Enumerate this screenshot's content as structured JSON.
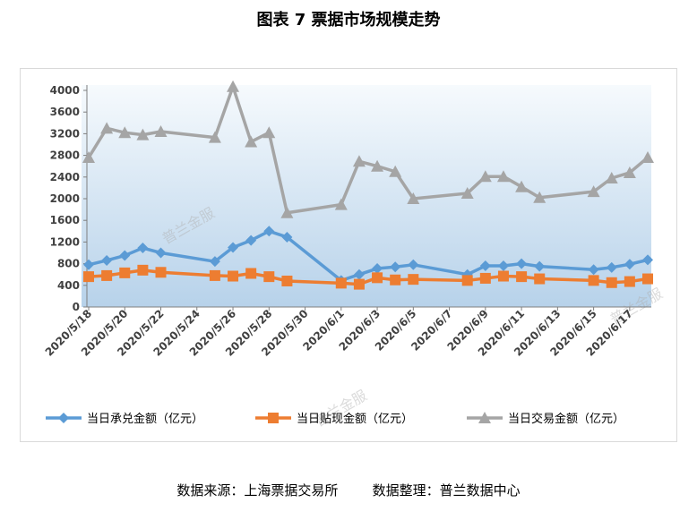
{
  "title": "图表 7  票据市场规模走势",
  "source": "数据来源：上海票据交易所        数据整理：普兰数据中心",
  "watermark": "普兰金服",
  "colors": {
    "accept": "#5b9bd5",
    "discount": "#ed7d31",
    "trade": "#a5a5a5",
    "plot_top": "#f6fafd",
    "plot_bottom": "#b7d2ea"
  },
  "chart_data": {
    "type": "line",
    "title": "图表 7  票据市场规模走势",
    "ylim": [
      0,
      4000
    ],
    "y_ticks": [
      0,
      400,
      800,
      1200,
      1600,
      2000,
      2400,
      2800,
      3200,
      3600,
      4000
    ],
    "x_tick_labels": [
      "2020/5/18",
      "2020/5/20",
      "2020/5/22",
      "2020/5/24",
      "2020/5/26",
      "2020/5/28",
      "2020/5/30",
      "2020/6/1",
      "2020/6/3",
      "2020/6/5",
      "2020/6/7",
      "2020/6/9",
      "2020/6/11",
      "2020/6/13",
      "2020/6/15",
      "2020/6/17"
    ],
    "x": [
      "2020/5/18",
      "2020/5/19",
      "2020/5/20",
      "2020/5/21",
      "2020/5/22",
      "2020/5/25",
      "2020/5/26",
      "2020/5/27",
      "2020/5/28",
      "2020/5/29",
      "2020/6/1",
      "2020/6/2",
      "2020/6/3",
      "2020/6/4",
      "2020/6/5",
      "2020/6/8",
      "2020/6/9",
      "2020/6/10",
      "2020/6/11",
      "2020/6/12",
      "2020/6/15",
      "2020/6/16",
      "2020/6/17",
      "2020/6/18"
    ],
    "series": [
      {
        "name": "当日承兑金额（亿元）",
        "marker": "diamond",
        "values": [
          780,
          860,
          950,
          1090,
          1000,
          840,
          1100,
          1230,
          1400,
          1290,
          490,
          600,
          710,
          740,
          780,
          600,
          760,
          760,
          800,
          750,
          690,
          730,
          790,
          870
        ]
      },
      {
        "name": "当日贴现金额（亿元）",
        "marker": "square",
        "values": [
          560,
          580,
          630,
          680,
          640,
          580,
          570,
          620,
          560,
          480,
          440,
          420,
          540,
          500,
          510,
          490,
          530,
          570,
          560,
          520,
          490,
          450,
          470,
          520
        ]
      },
      {
        "name": "当日交易金额（亿元）",
        "marker": "triangle",
        "values": [
          2760,
          3300,
          3220,
          3180,
          3240,
          3130,
          4070,
          3050,
          3220,
          1740,
          1890,
          2690,
          2600,
          2500,
          2000,
          2100,
          2410,
          2410,
          2220,
          2020,
          2130,
          2380,
          2480,
          2760
        ]
      }
    ],
    "legend_position": "bottom",
    "grid": false
  }
}
